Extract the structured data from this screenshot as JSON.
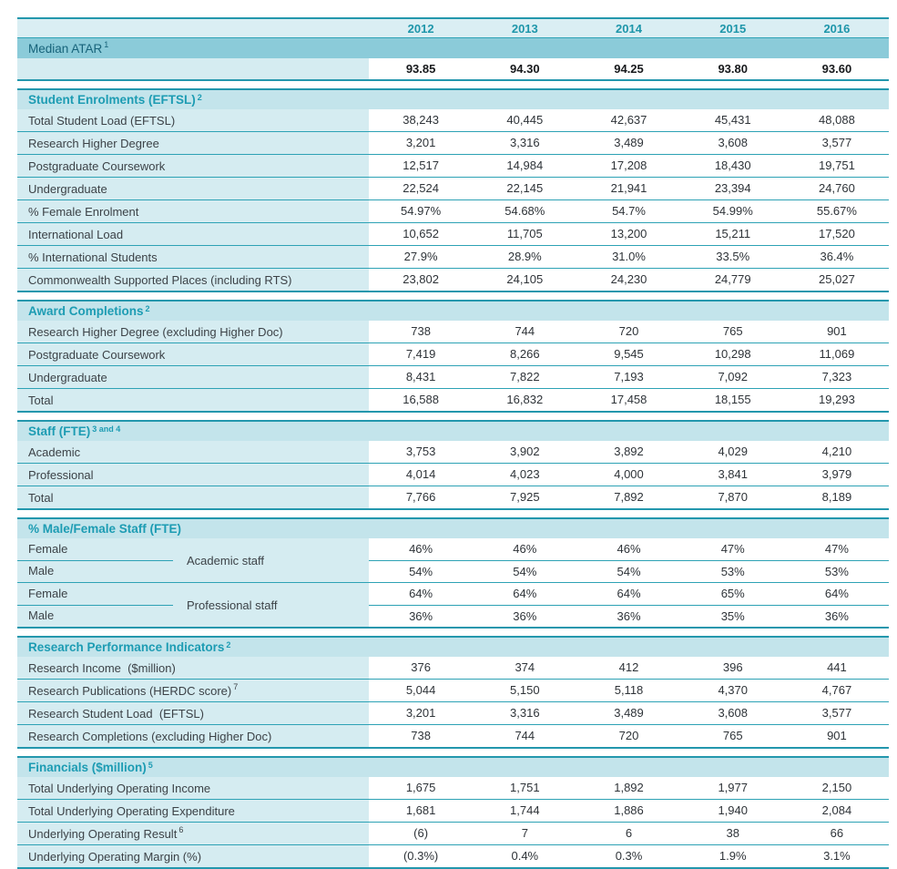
{
  "colors": {
    "border_teal": "#2397ad",
    "divider_teal": "#2da2b5",
    "year_row_bg": "#daeef3",
    "year_text": "#1e96aa",
    "atar_band_bg": "#8bcbd9",
    "atar_band_text": "#17637a",
    "section_header_bg": "#c3e4eb",
    "section_header_text": "#1d9cb3",
    "label_col_bg": "#d5ecf1",
    "label_text": "#3c4247",
    "value_text": "#2e3338"
  },
  "years": [
    "2012",
    "2013",
    "2014",
    "2015",
    "2016"
  ],
  "atar": {
    "title": "Median ATAR",
    "sup": "1",
    "values": [
      "93.85",
      "94.30",
      "94.25",
      "93.80",
      "93.60"
    ]
  },
  "sections": [
    {
      "title": "Student Enrolments (EFTSL)",
      "sup": "2",
      "rows": [
        {
          "label": "Total Student Load (EFTSL)",
          "values": [
            "38,243",
            "40,445",
            "42,637",
            "45,431",
            "48,088"
          ]
        },
        {
          "label": "Research Higher Degree",
          "values": [
            "3,201",
            "3,316",
            "3,489",
            "3,608",
            "3,577"
          ]
        },
        {
          "label": "Postgraduate Coursework",
          "values": [
            "12,517",
            "14,984",
            "17,208",
            "18,430",
            "19,751"
          ]
        },
        {
          "label": "Undergraduate",
          "values": [
            "22,524",
            "22,145",
            "21,941",
            "23,394",
            "24,760"
          ]
        },
        {
          "label": "% Female Enrolment",
          "values": [
            "54.97%",
            "54.68%",
            "54.7%",
            "54.99%",
            "55.67%"
          ]
        },
        {
          "label": "International Load",
          "values": [
            "10,652",
            "11,705",
            "13,200",
            "15,211",
            "17,520"
          ]
        },
        {
          "label": "% International Students",
          "values": [
            "27.9%",
            "28.9%",
            "31.0%",
            "33.5%",
            "36.4%"
          ]
        },
        {
          "label": "Commonwealth Supported Places (including RTS)",
          "values": [
            "23,802",
            "24,105",
            "24,230",
            "24,779",
            "25,027"
          ]
        }
      ]
    },
    {
      "title": "Award Completions",
      "sup": "2",
      "rows": [
        {
          "label": "Research Higher Degree (excluding Higher Doc)",
          "values": [
            "738",
            "744",
            "720",
            "765",
            "901"
          ]
        },
        {
          "label": "Postgraduate Coursework",
          "values": [
            "7,419",
            "8,266",
            "9,545",
            "10,298",
            "11,069"
          ]
        },
        {
          "label": "Undergraduate",
          "values": [
            "8,431",
            "7,822",
            "7,193",
            "7,092",
            "7,323"
          ]
        },
        {
          "label": "Total",
          "values": [
            "16,588",
            "16,832",
            "17,458",
            "18,155",
            "19,293"
          ]
        }
      ]
    },
    {
      "title": "Staff (FTE)",
      "sup": "3 and 4",
      "rows": [
        {
          "label": "Academic",
          "values": [
            "3,753",
            "3,902",
            "3,892",
            "4,029",
            "4,210"
          ]
        },
        {
          "label": "Professional",
          "values": [
            "4,014",
            "4,023",
            "4,000",
            "3,841",
            "3,979"
          ]
        },
        {
          "label": "Total",
          "values": [
            "7,766",
            "7,925",
            "7,892",
            "7,870",
            "8,189"
          ]
        }
      ]
    },
    {
      "title": "% Male/Female Staff (FTE)",
      "sup": "",
      "groups": [
        {
          "group_label": "Academic staff",
          "rows": [
            {
              "label": "Female",
              "values": [
                "46%",
                "46%",
                "46%",
                "47%",
                "47%"
              ]
            },
            {
              "label": "Male",
              "values": [
                "54%",
                "54%",
                "54%",
                "53%",
                "53%"
              ]
            }
          ]
        },
        {
          "group_label": "Professional staff",
          "rows": [
            {
              "label": "Female",
              "values": [
                "64%",
                "64%",
                "64%",
                "65%",
                "64%"
              ]
            },
            {
              "label": "Male",
              "values": [
                "36%",
                "36%",
                "36%",
                "35%",
                "36%"
              ]
            }
          ]
        }
      ]
    },
    {
      "title": "Research Performance Indicators",
      "sup": "2",
      "rows": [
        {
          "label": "Research Income  ($million)",
          "values": [
            "376",
            "374",
            "412",
            "396",
            "441"
          ]
        },
        {
          "label": "Research Publications (HERDC score)",
          "label_sup": "7",
          "values": [
            "5,044",
            "5,150",
            "5,118",
            "4,370",
            "4,767"
          ]
        },
        {
          "label": "Research Student Load  (EFTSL)",
          "values": [
            "3,201",
            "3,316",
            "3,489",
            "3,608",
            "3,577"
          ]
        },
        {
          "label": "Research Completions (excluding Higher Doc)",
          "values": [
            "738",
            "744",
            "720",
            "765",
            "901"
          ]
        }
      ]
    },
    {
      "title": "Financials ($million)",
      "sup": "5",
      "rows": [
        {
          "label": "Total Underlying Operating Income",
          "values": [
            "1,675",
            "1,751",
            "1,892",
            "1,977",
            "2,150"
          ]
        },
        {
          "label": "Total Underlying Operating Expenditure",
          "values": [
            "1,681",
            "1,744",
            "1,886",
            "1,940",
            "2,084"
          ]
        },
        {
          "label": "Underlying Operating Result",
          "label_sup": "6",
          "values": [
            "(6)",
            "7",
            "6",
            "38",
            "66"
          ]
        },
        {
          "label": "Underlying Operating Margin (%)",
          "values": [
            "(0.3%)",
            "0.4%",
            "0.3%",
            "1.9%",
            "3.1%"
          ]
        }
      ]
    }
  ]
}
